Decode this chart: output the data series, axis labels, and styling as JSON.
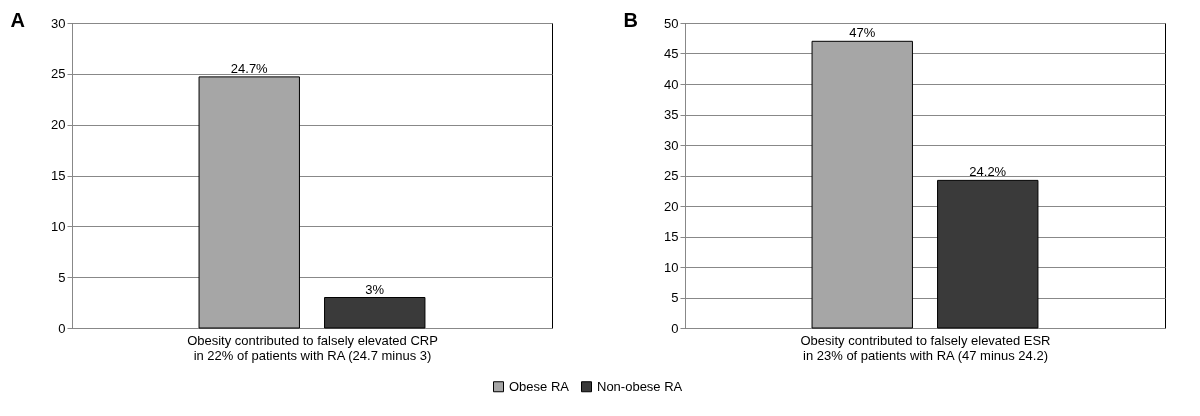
{
  "chart_data": [
    {
      "type": "bar",
      "title": "A",
      "xlabel": "Obesity contributed to falsely elevated CRP\nin 22% of patients with RA (24.7 minus 3)",
      "categories": [
        null
      ],
      "series": [
        {
          "name": "Obese RA",
          "color": "#a6a6a6",
          "values": [
            24.7
          ],
          "value_labels": [
            "24.7%"
          ]
        },
        {
          "name": "Non-obese RA",
          "color": "#3a3a3a",
          "values": [
            3
          ],
          "value_labels": [
            "3%"
          ]
        }
      ],
      "ylim": [
        0,
        30
      ],
      "yticks": [
        0,
        5,
        10,
        15,
        20,
        25,
        30
      ],
      "grid": "y",
      "legend": "bottom"
    },
    {
      "type": "bar",
      "title": "B",
      "xlabel": "Obesity contributed to falsely elevated ESR\nin 23% of patients with RA (47 minus 24.2)",
      "categories": [
        null
      ],
      "series": [
        {
          "name": "Obese RA",
          "color": "#a6a6a6",
          "values": [
            47
          ],
          "value_labels": [
            "47%"
          ]
        },
        {
          "name": "Non-obese RA",
          "color": "#3a3a3a",
          "values": [
            24.2
          ],
          "value_labels": [
            "24.2%"
          ]
        }
      ],
      "ylim": [
        0,
        50
      ],
      "yticks": [
        0,
        5,
        10,
        15,
        20,
        25,
        30,
        35,
        40,
        45,
        50
      ],
      "grid": "y",
      "legend": "bottom"
    }
  ]
}
